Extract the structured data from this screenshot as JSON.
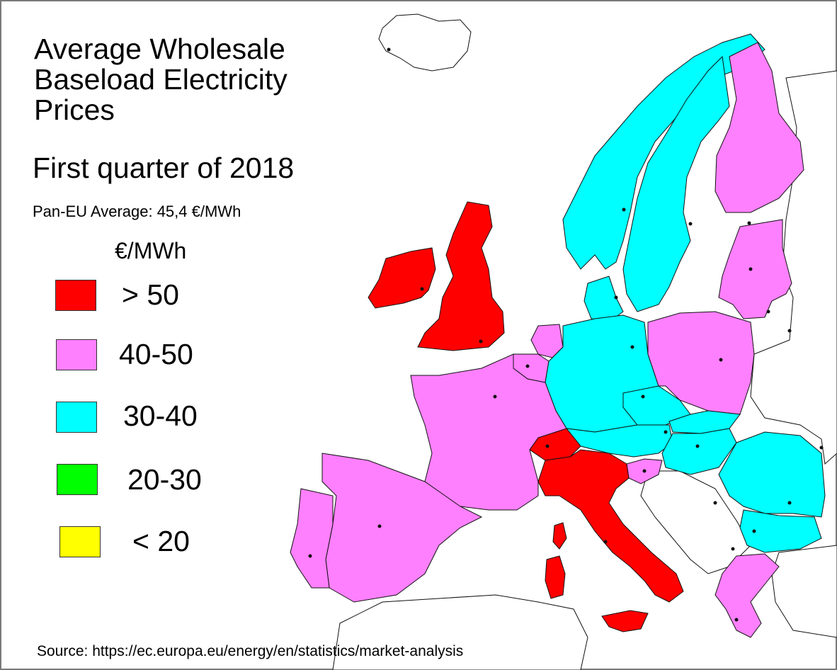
{
  "title": "Average Wholesale\nBaseload Electricity\nPrices",
  "subtitle": "First quarter of 2018",
  "average_label": "Pan-EU Average: 45,4 €/MWh",
  "legend": {
    "unit": "€/MWh",
    "items": [
      {
        "label": "> 50",
        "color": "#ff0000"
      },
      {
        "label": "40-50",
        "color": "#ff80ff"
      },
      {
        "label": "30-40",
        "color": "#00ffff"
      },
      {
        "label": "20-30",
        "color": "#00ff00"
      },
      {
        "label": "< 20",
        "color": "#ffff00"
      }
    ]
  },
  "source": "Source: https://ec.europa.eu/energy/en/statistics/market-analysis",
  "map": {
    "non_eu_color": "#ffffff",
    "regions": [
      {
        "name": "United Kingdom",
        "band": "> 50",
        "color": "#ff0000"
      },
      {
        "name": "Ireland",
        "band": "> 50",
        "color": "#ff0000"
      },
      {
        "name": "Italy",
        "band": "> 50",
        "color": "#ff0000"
      },
      {
        "name": "Switzerland",
        "band": "> 50",
        "color": "#ff0000"
      },
      {
        "name": "France",
        "band": "40-50",
        "color": "#ff80ff"
      },
      {
        "name": "Spain",
        "band": "40-50",
        "color": "#ff80ff"
      },
      {
        "name": "Portugal",
        "band": "40-50",
        "color": "#ff80ff"
      },
      {
        "name": "Belgium",
        "band": "40-50",
        "color": "#ff80ff"
      },
      {
        "name": "Netherlands",
        "band": "40-50",
        "color": "#ff80ff"
      },
      {
        "name": "Poland",
        "band": "40-50",
        "color": "#ff80ff"
      },
      {
        "name": "Finland",
        "band": "40-50",
        "color": "#ff80ff"
      },
      {
        "name": "Baltic States",
        "band": "40-50",
        "color": "#ff80ff"
      },
      {
        "name": "Greece",
        "band": "40-50",
        "color": "#ff80ff"
      },
      {
        "name": "Slovenia",
        "band": "40-50",
        "color": "#ff80ff"
      },
      {
        "name": "Norway",
        "band": "30-40",
        "color": "#00ffff"
      },
      {
        "name": "Sweden",
        "band": "30-40",
        "color": "#00ffff"
      },
      {
        "name": "Denmark",
        "band": "30-40",
        "color": "#00ffff"
      },
      {
        "name": "Germany",
        "band": "30-40",
        "color": "#00ffff"
      },
      {
        "name": "Austria",
        "band": "30-40",
        "color": "#00ffff"
      },
      {
        "name": "Czech Republic",
        "band": "30-40",
        "color": "#00ffff"
      },
      {
        "name": "Slovakia",
        "band": "30-40",
        "color": "#00ffff"
      },
      {
        "name": "Hungary",
        "band": "30-40",
        "color": "#00ffff"
      },
      {
        "name": "Romania",
        "band": "30-40",
        "color": "#00ffff"
      },
      {
        "name": "Bulgaria",
        "band": "30-40",
        "color": "#00ffff"
      }
    ]
  }
}
